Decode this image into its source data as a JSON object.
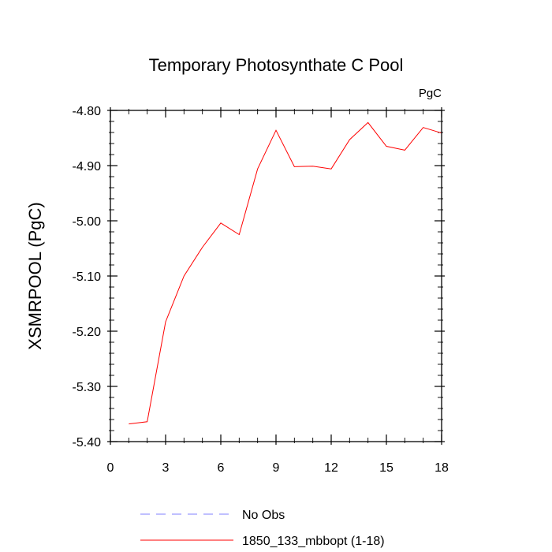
{
  "chart_data": {
    "type": "line",
    "title": "Temporary Photosynthate C Pool",
    "units": "PgC",
    "xlabel": "",
    "ylabel": "XSMRPOOL  (PgC)",
    "xlim": [
      0,
      18
    ],
    "ylim": [
      -5.4,
      -4.8
    ],
    "x_ticks": [
      0,
      3,
      6,
      9,
      12,
      15,
      18
    ],
    "x_tick_labels": [
      "0",
      "3",
      "6",
      "9",
      "12",
      "15",
      "18"
    ],
    "y_ticks": [
      -4.8,
      -4.9,
      -5.0,
      -5.1,
      -5.2,
      -5.3,
      -5.4
    ],
    "y_tick_labels": [
      "-4.80",
      "-4.90",
      "-5.00",
      "-5.10",
      "-5.20",
      "-5.30",
      "-5.40"
    ],
    "series": [
      {
        "name": "1850_133_mbbopt (1-18)",
        "color": "#ff0000",
        "dash": "solid",
        "x": [
          1,
          2,
          3,
          4,
          5,
          6,
          7,
          8,
          9,
          10,
          11,
          12,
          13,
          14,
          15,
          16,
          17,
          18
        ],
        "values": [
          -5.368,
          -5.364,
          -5.183,
          -5.1,
          -5.048,
          -5.004,
          -5.025,
          -4.906,
          -4.836,
          -4.902,
          -4.901,
          -4.906,
          -4.853,
          -4.822,
          -4.865,
          -4.872,
          -4.831,
          -4.841
        ]
      }
    ],
    "legend": {
      "placement": "bottom-center",
      "entries": [
        {
          "label": "No Obs",
          "color": "#8080ff",
          "dash": "dashed"
        },
        {
          "label": "1850_133_mbbopt (1-18)",
          "color": "#ff0000",
          "dash": "solid"
        }
      ]
    }
  }
}
